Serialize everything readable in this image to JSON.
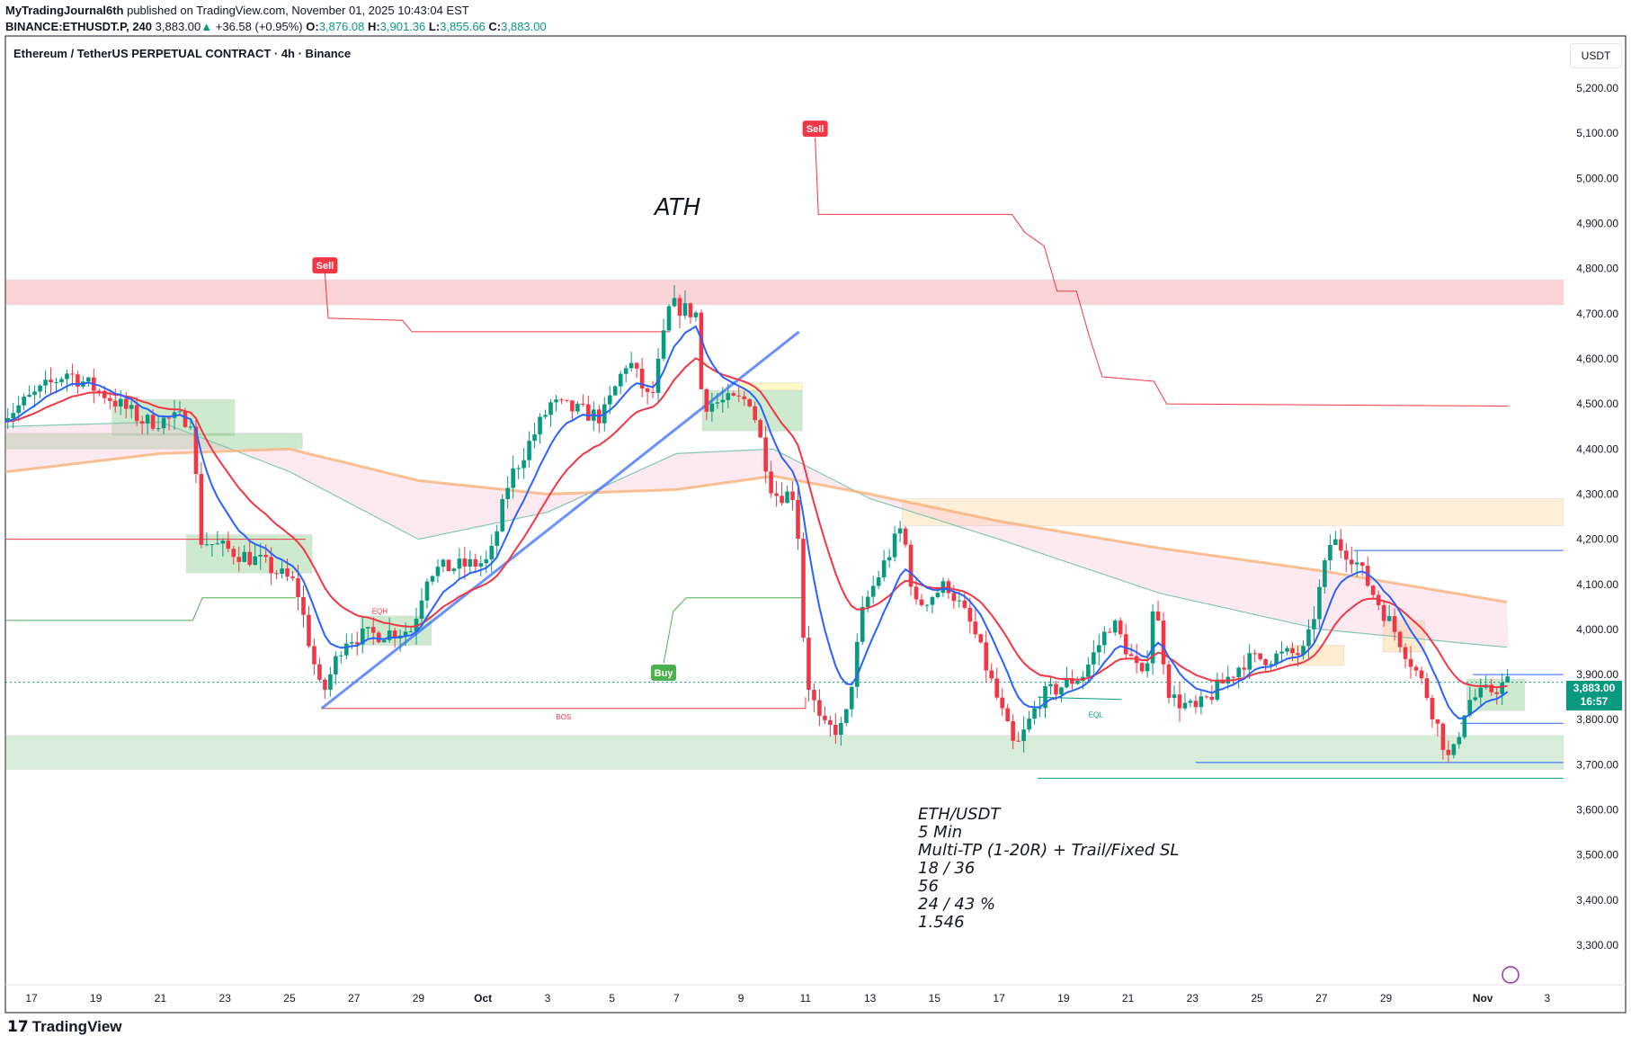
{
  "header": {
    "author": "MyTradingJournal6th",
    "published": "published on TradingView.com, November 01, 2025 10:43:04 EST",
    "symbol": "BINANCE:ETHUSDT.P, 240",
    "last": "3,883.00",
    "change": "+36.58 (+0.95%)",
    "o_label": "O:",
    "o": "3,876.08",
    "h_label": "H:",
    "h": "3,901.36",
    "l_label": "L:",
    "l": "3,855.66",
    "c_label": "C:",
    "c": "3,883.00"
  },
  "chart_title": "Ethereum / TetherUS PERPETUAL CONTRACT · 4h · Binance",
  "currency_button": "USDT",
  "price_tag": {
    "price": "3,883.00",
    "countdown": "16:57"
  },
  "annotations": {
    "ath": "ATH",
    "bos": "BOS",
    "eqh": "EQH",
    "eql": "EQL",
    "sell": "Sell",
    "buy": "Buy"
  },
  "stats": [
    "ETH/USDT",
    "5 Min",
    "Multi-TP (1-20R) + Trail/Fixed SL",
    "18 / 36",
    "56",
    "24 / 43 %",
    "1.546"
  ],
  "footer": {
    "brand": "TradingView"
  },
  "colors": {
    "up": "#089981",
    "down": "#f23645",
    "ema_fast": "#2962ff",
    "ema_slow": "#f23645",
    "ema_long": "#f7b27a",
    "accent": "#089981"
  },
  "chart_data": {
    "type": "candlestick",
    "timeframe": "4h",
    "ylim": [
      3250,
      5250
    ],
    "y_ticks": [
      "5,200.00",
      "5,100.00",
      "5,000.00",
      "4,900.00",
      "4,800.00",
      "4,700.00",
      "4,600.00",
      "4,500.00",
      "4,400.00",
      "4,300.00",
      "4,200.00",
      "4,100.00",
      "4,000.00",
      "3,900.00",
      "3,800.00",
      "3,700.00",
      "3,600.00",
      "3,500.00",
      "3,400.00",
      "3,300.00"
    ],
    "x_ticks": [
      "17",
      "19",
      "21",
      "23",
      "25",
      "27",
      "29",
      "Oct",
      "3",
      "5",
      "7",
      "9",
      "11",
      "13",
      "15",
      "17",
      "19",
      "21",
      "23",
      "25",
      "27",
      "29",
      "Nov",
      "3"
    ],
    "x_tick_days_from_sep17": [
      0,
      2,
      4,
      6,
      8,
      10,
      12,
      14,
      16,
      18,
      20,
      22,
      24,
      26,
      28,
      30,
      32,
      34,
      36,
      38,
      40,
      42,
      45,
      47
    ],
    "price_path": [
      [
        -0.7,
        4480
      ],
      [
        1.1,
        4570
      ],
      [
        2.3,
        4520
      ],
      [
        3.5,
        4460
      ],
      [
        5,
        4470
      ],
      [
        5.2,
        4200
      ],
      [
        7.1,
        4150
      ],
      [
        8.2,
        4100
      ],
      [
        9,
        3850
      ],
      [
        9.7,
        3980
      ],
      [
        11.8,
        4000
      ],
      [
        12.3,
        4130
      ],
      [
        14.2,
        4150
      ],
      [
        14.8,
        4330
      ],
      [
        16.1,
        4500
      ],
      [
        17.7,
        4470
      ],
      [
        18.5,
        4600
      ],
      [
        19.2,
        4500
      ],
      [
        19.8,
        4720
      ],
      [
        20.6,
        4700
      ],
      [
        20.8,
        4500
      ],
      [
        22.3,
        4510
      ],
      [
        23,
        4300
      ],
      [
        23.7,
        4300
      ],
      [
        24,
        3900
      ],
      [
        24.5,
        3780
      ],
      [
        25.2,
        3780
      ],
      [
        25.8,
        4050
      ],
      [
        27,
        4230
      ],
      [
        27.4,
        4050
      ],
      [
        28.4,
        4100
      ],
      [
        29.2,
        4000
      ],
      [
        30.5,
        3730
      ],
      [
        31.3,
        3850
      ],
      [
        32.6,
        3900
      ],
      [
        33.5,
        4020
      ],
      [
        34.5,
        3880
      ],
      [
        34.8,
        4070
      ],
      [
        35.3,
        3850
      ],
      [
        36.1,
        3820
      ],
      [
        37.6,
        3930
      ],
      [
        39.5,
        3950
      ],
      [
        40.3,
        4200
      ],
      [
        41,
        4160
      ],
      [
        41.6,
        4080
      ],
      [
        42.4,
        3980
      ],
      [
        43.2,
        3870
      ],
      [
        44,
        3700
      ],
      [
        44.5,
        3840
      ],
      [
        45.8,
        3883
      ]
    ],
    "ema_long": [
      [
        -0.7,
        4350
      ],
      [
        4,
        4390
      ],
      [
        8,
        4400
      ],
      [
        12,
        4330
      ],
      [
        16,
        4300
      ],
      [
        20,
        4310
      ],
      [
        23,
        4340
      ],
      [
        26,
        4300
      ],
      [
        30,
        4240
      ],
      [
        35,
        4180
      ],
      [
        40,
        4130
      ],
      [
        45.8,
        4060
      ]
    ],
    "ema_ribbon": [
      [
        -0.7,
        4450
      ],
      [
        4,
        4460
      ],
      [
        8,
        4350
      ],
      [
        12,
        4200
      ],
      [
        16,
        4260
      ],
      [
        20,
        4390
      ],
      [
        23,
        4400
      ],
      [
        26,
        4290
      ],
      [
        30,
        4200
      ],
      [
        35,
        4080
      ],
      [
        40,
        4000
      ],
      [
        45.8,
        3960
      ]
    ],
    "current_price": 3883,
    "zones": [
      {
        "kind": "supply",
        "from": -1,
        "to": 47.5,
        "low": 4720,
        "high": 4775,
        "color": "#f23645"
      },
      {
        "kind": "demand",
        "from": -1,
        "to": 47.5,
        "low": 3690,
        "high": 3765,
        "color": "#4caf50"
      },
      {
        "kind": "supply",
        "from": 27,
        "to": 47.5,
        "low": 4230,
        "high": 4290,
        "color": "#ffb74d"
      },
      {
        "kind": "ob",
        "from": 2.5,
        "to": 6.3,
        "low": 4430,
        "high": 4510,
        "color": "#4caf50"
      },
      {
        "kind": "ob",
        "from": -1,
        "to": 8.4,
        "low": 4400,
        "high": 4435,
        "color": "#4caf50"
      },
      {
        "kind": "ob",
        "from": 4.8,
        "to": 8.7,
        "low": 4125,
        "high": 4210,
        "color": "#4caf50"
      },
      {
        "kind": "ob",
        "from": 10.2,
        "to": 12.4,
        "low": 3965,
        "high": 4030,
        "color": "#4caf50"
      },
      {
        "kind": "ob",
        "from": 20.8,
        "to": 23.9,
        "low": 4440,
        "high": 4530,
        "color": "#4caf50"
      },
      {
        "kind": "ob",
        "from": 21.9,
        "to": 23.9,
        "low": 4530,
        "high": 4547,
        "color": "#ffeb3b"
      },
      {
        "kind": "ob",
        "from": 39,
        "to": 40.7,
        "low": 3920,
        "high": 3965,
        "color": "#ffb74d"
      },
      {
        "kind": "ob",
        "from": 41.9,
        "to": 43.2,
        "low": 3950,
        "high": 4020,
        "color": "#ffb74d"
      },
      {
        "kind": "ob",
        "from": 44.5,
        "to": 46.3,
        "low": 3820,
        "high": 3890,
        "color": "#4caf50"
      }
    ],
    "signals": [
      {
        "label": "Sell",
        "day": 9.1,
        "price": 4805
      },
      {
        "label": "Sell",
        "day": 24.3,
        "price": 5108
      },
      {
        "label": "Buy",
        "day": 19.6,
        "price": 3918
      }
    ]
  }
}
